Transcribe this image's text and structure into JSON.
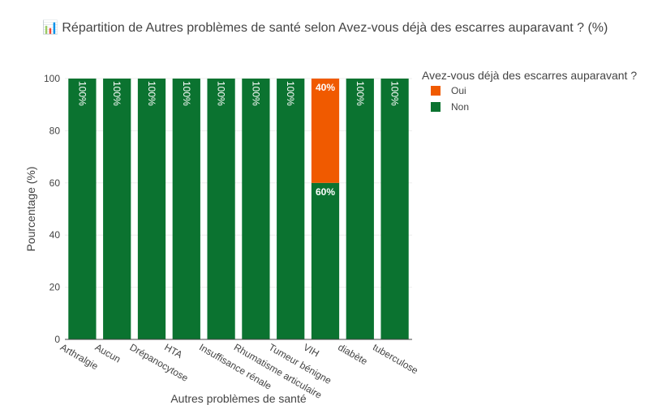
{
  "chart_data": {
    "type": "bar",
    "stacked": true,
    "title_icon": "📊",
    "title": "Répartition de Autres problèmes de santé selon Avez-vous déjà des escarres auparavant ? (%)",
    "xlabel": "Autres problèmes de santé",
    "ylabel": "Pourcentage (%)",
    "ylim": [
      0,
      100
    ],
    "yticks": [
      0,
      20,
      40,
      60,
      80,
      100
    ],
    "categories": [
      "Arthralgie",
      "Aucun",
      "Drépanocytose",
      "HTA",
      "Insuffisance rénale",
      "Rhumatisme articulaire",
      "Tumeur bénigne",
      "VIH",
      "diabète",
      "tuberculose"
    ],
    "legend_title": "Avez-vous déjà des escarres auparavant ?",
    "legend_position": "top-right",
    "grid": true,
    "series": [
      {
        "name": "Non",
        "color": "#0b7330",
        "values": [
          100,
          100,
          100,
          100,
          100,
          100,
          100,
          60,
          100,
          100
        ],
        "labels": [
          "100%",
          "100%",
          "100%",
          "100%",
          "100%",
          "100%",
          "100%",
          "60%",
          "100%",
          "100%"
        ]
      },
      {
        "name": "Oui",
        "color": "#f05a00",
        "values": [
          0,
          0,
          0,
          0,
          0,
          0,
          0,
          40,
          0,
          0
        ],
        "labels": [
          "",
          "",
          "",
          "",
          "",
          "",
          "",
          "40%",
          "",
          ""
        ]
      }
    ],
    "legend_order": [
      "Oui",
      "Non"
    ]
  }
}
